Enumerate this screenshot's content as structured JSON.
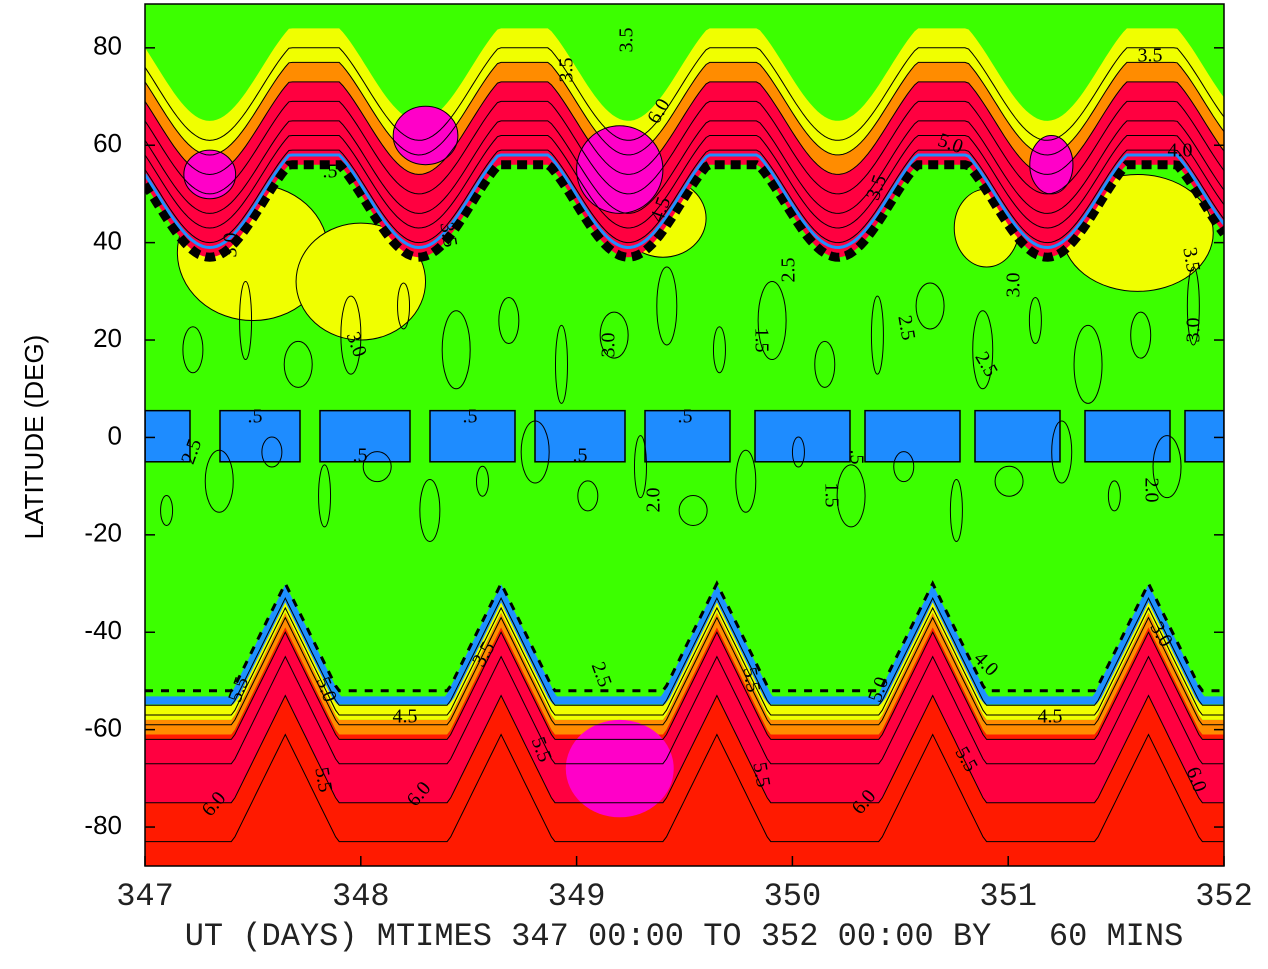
{
  "chart_data": {
    "type": "contour",
    "y_label": "LATITUDE (DEG)",
    "x_label": "UT (DAYS) MTIMES 347 00:00 TO 352 00:00 BY   60 MINS",
    "xlim": [
      347,
      352
    ],
    "xticks": [
      347,
      348,
      349,
      350,
      351,
      352
    ],
    "ylim": [
      -88,
      89
    ],
    "yticks": [
      -80,
      -60,
      -40,
      -20,
      0,
      20,
      40,
      60,
      80
    ],
    "contour_labels": [
      "3.5",
      "3.5",
      "3.5",
      "6.0",
      "5.0",
      "4.0",
      ".5",
      "3.0",
      "3.5",
      "4.5",
      "3.5",
      "2.5",
      "3.0",
      "3.5",
      "3.0",
      "3.0",
      "2.5",
      "1.5",
      "2.5",
      "3.0",
      ".5",
      ".5",
      ".5",
      ".5",
      ".5",
      "2.5",
      "2.0",
      "1.5",
      ".5",
      "2.0",
      "3.5",
      "2.5",
      "5.5",
      "5.0",
      "4.0",
      "3.0",
      "5.5",
      "5.0",
      "4.5",
      "4.5",
      "5.5",
      "5.5",
      "6.0",
      "6.0",
      "5.5",
      "6.0",
      "5.5",
      "6.0"
    ]
  }
}
